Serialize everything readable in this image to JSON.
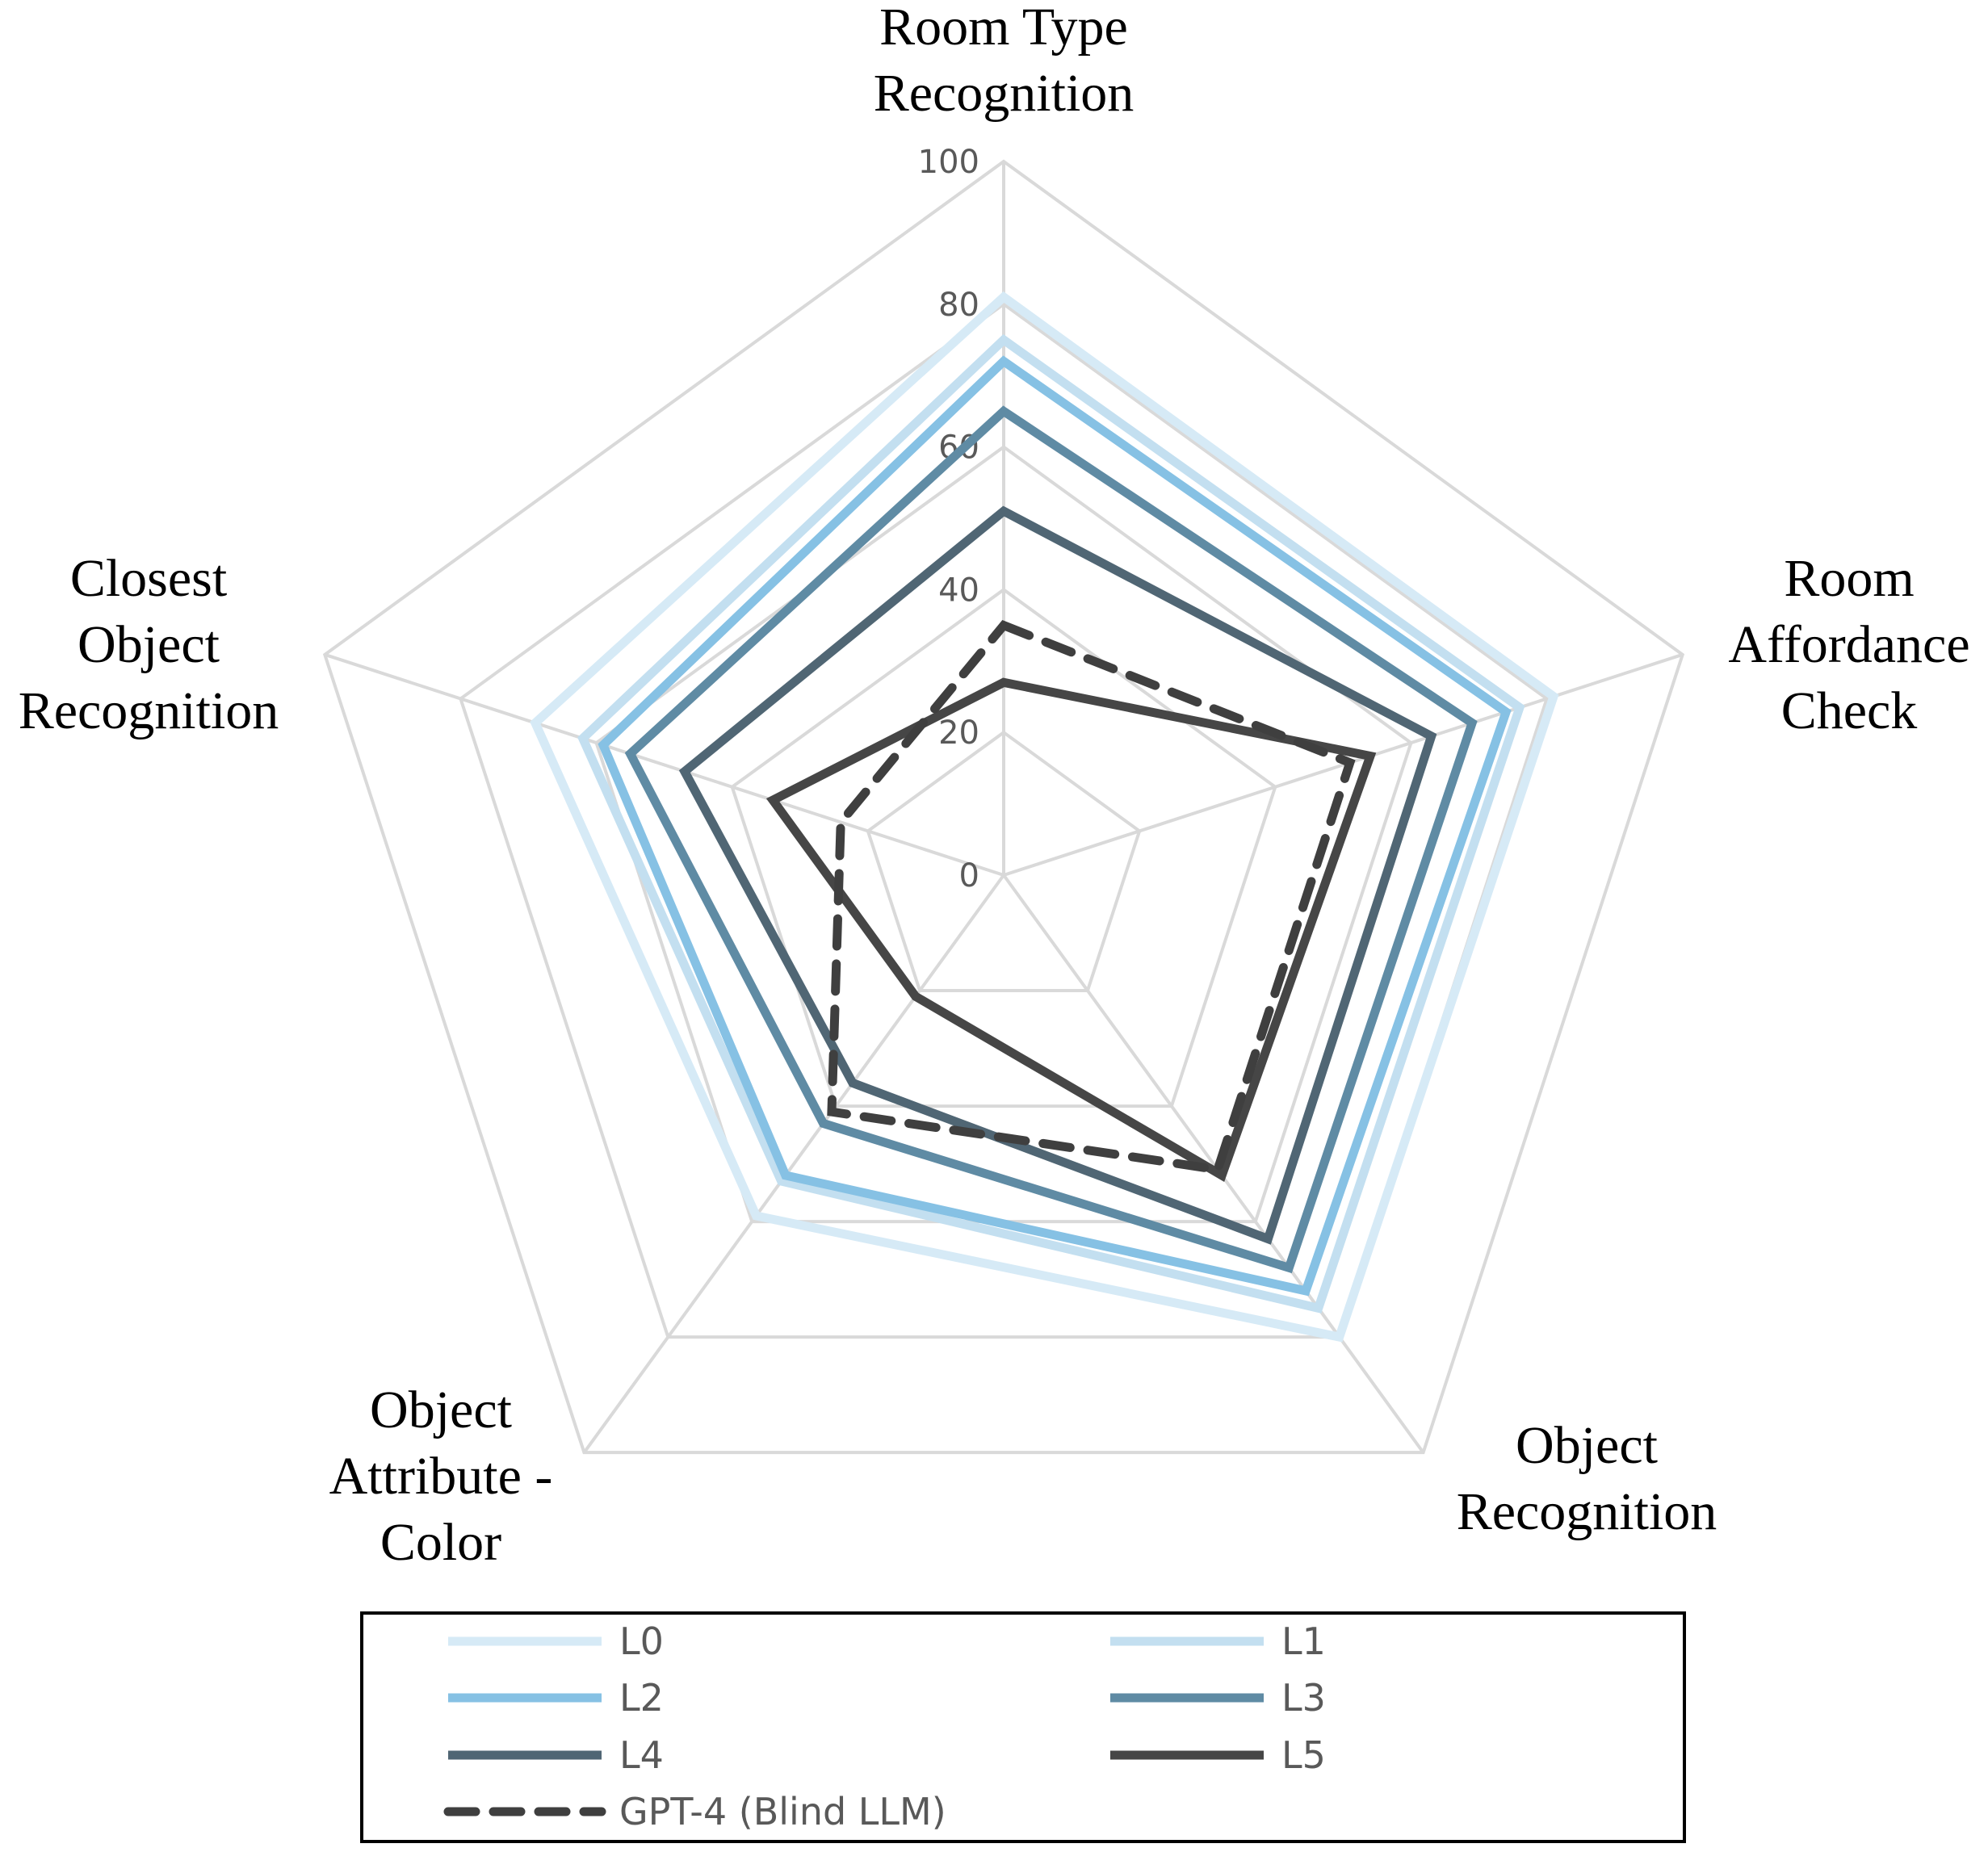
{
  "chart_data": {
    "type": "radar",
    "title": "",
    "axes": [
      {
        "name": "Room Type Recognition",
        "lines": [
          "Room Type",
          "Recognition"
        ]
      },
      {
        "name": "Room Affordance Check",
        "lines": [
          "Room",
          "Affordance",
          "Check"
        ]
      },
      {
        "name": "Object Recognition",
        "lines": [
          "Object",
          "Recognition"
        ]
      },
      {
        "name": "Object Attribute - Color",
        "lines": [
          "Object",
          "Attribute -",
          "Color"
        ]
      },
      {
        "name": "Closest Object Recognition",
        "lines": [
          "Closest",
          "Object",
          "Recognition"
        ]
      }
    ],
    "rlim": [
      0,
      100
    ],
    "ticks": [
      "0",
      "20",
      "40",
      "60",
      "80",
      "100"
    ],
    "tick_values": [
      0,
      20,
      40,
      60,
      80,
      100
    ],
    "grid": true,
    "legend_placement": "bottom",
    "series": [
      {
        "name": "L0",
        "values": [
          81,
          81,
          80,
          59,
          69
        ],
        "color": "#D6EAF6",
        "dashed": false
      },
      {
        "name": "L1",
        "values": [
          75,
          76,
          75,
          53,
          62
        ],
        "color": "#C3DFF0",
        "dashed": false
      },
      {
        "name": "L2",
        "values": [
          72,
          74,
          72,
          52,
          59
        ],
        "color": "#86C1E4",
        "dashed": false
      },
      {
        "name": "L3",
        "values": [
          65,
          69,
          68,
          43,
          55
        ],
        "color": "#5F8BA4",
        "dashed": false
      },
      {
        "name": "L4",
        "values": [
          51,
          63,
          63,
          36,
          47
        ],
        "color": "#506674",
        "dashed": false
      },
      {
        "name": "L5",
        "values": [
          27,
          54,
          52,
          21,
          34
        ],
        "color": "#464646",
        "dashed": false
      },
      {
        "name": "GPT-4 (Blind LLM)",
        "values": [
          35,
          51,
          51,
          41,
          24
        ],
        "color": "#3F3F3F",
        "dashed": true
      }
    ]
  }
}
